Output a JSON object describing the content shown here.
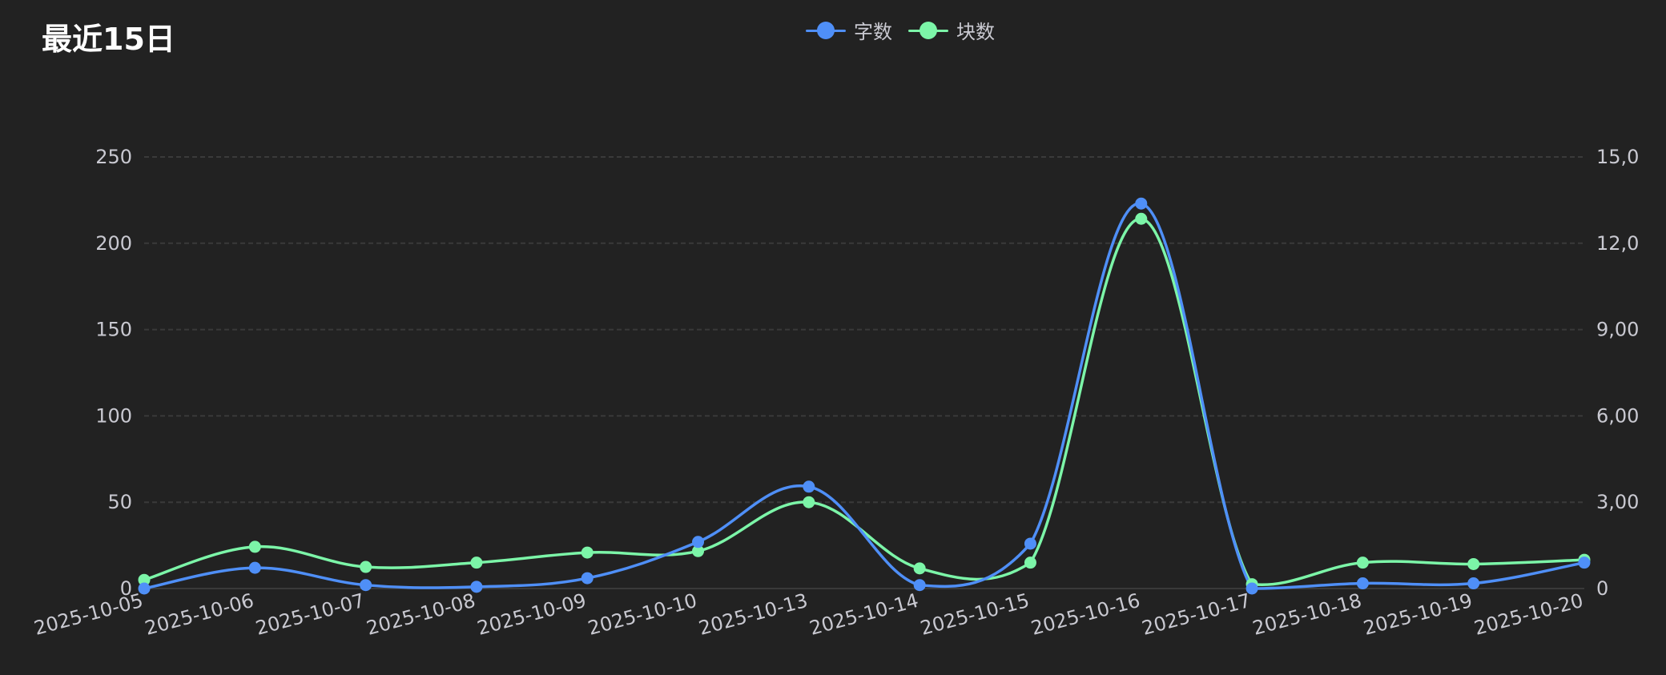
{
  "title": "最近15日",
  "colors": {
    "background": "#222222",
    "series1": "#4f8ff7",
    "series2": "#7cf5a8",
    "grid": "#3a3a3a",
    "text": "#c9c9d1"
  },
  "legend": {
    "items": [
      {
        "label": "字数",
        "color": "#4f8ff7"
      },
      {
        "label": "块数",
        "color": "#7cf5a8"
      }
    ]
  },
  "chart_data": {
    "type": "line",
    "title": "最近15日",
    "categories": [
      "2025-10-05",
      "2025-10-06",
      "2025-10-07",
      "2025-10-08",
      "2025-10-09",
      "2025-10-10",
      "2025-10-13",
      "2025-10-14",
      "2025-10-15",
      "2025-10-16",
      "2025-10-17",
      "2025-10-18",
      "2025-10-19",
      "2025-10-20"
    ],
    "y_left": {
      "ylim": [
        0,
        250
      ],
      "ticks": [
        0,
        50,
        100,
        150,
        200,
        250
      ],
      "tick_labels": [
        "0",
        "50",
        "100",
        "150",
        "200",
        "250"
      ]
    },
    "y_right": {
      "ylim": [
        0,
        15
      ],
      "ticks": [
        0,
        3,
        6,
        9,
        12,
        15
      ],
      "tick_labels": [
        "0",
        "3,00",
        "6,00",
        "9,00",
        "12,0",
        "15,0"
      ]
    },
    "series": [
      {
        "name": "字数",
        "axis": "left",
        "values": [
          0,
          12,
          2,
          1,
          6,
          27,
          59,
          2,
          26,
          223,
          0,
          3,
          3,
          15
        ]
      },
      {
        "name": "块数",
        "axis": "right",
        "values": [
          0.3,
          1.45,
          0.75,
          0.9,
          1.25,
          1.3,
          3.0,
          0.7,
          0.9,
          12.85,
          0.15,
          0.9,
          0.85,
          1.0
        ]
      }
    ],
    "grid": true,
    "legend_position": "top-center",
    "smooth": true
  }
}
